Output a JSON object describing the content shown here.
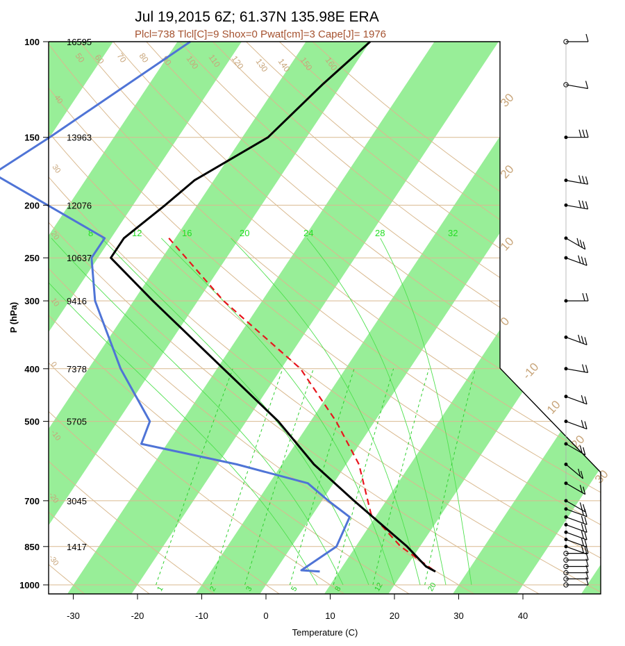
{
  "title": "Jul 19,2015 6Z; 61.37N 135.98E ERA",
  "subtitle": "Plcl=738 Tlcl[C]=9 Shox=0 Pwat[cm]=3 Cape[J]= 1976",
  "xlabel": "Temperature (C)",
  "ylabel": "P (hPa)",
  "colors": {
    "temperature": "#000000",
    "dewpoint": "#4f74d6",
    "parcel": "#e8141c",
    "isotherm_band": "#98ee98",
    "dry_adiabat": "#d9b98f",
    "mixing_ratio": "#2fcf2f",
    "moist_adiabat": "#4fe04f",
    "subtitle": "#a5522f",
    "label_tan": "#c8a57a"
  },
  "chart_data": {
    "type": "line",
    "title": "Jul 19,2015 6Z; 61.37N 135.98E ERA",
    "subtitle": "Plcl=738 Tlcl[C]=9 Shox=0 Pwat[cm]=3 Cape[J]= 1976",
    "xlabel": "Temperature (C)",
    "ylabel": "P (hPa)",
    "y_scale": "log",
    "xlim": [
      -33,
      52
    ],
    "ylim": [
      1050,
      100
    ],
    "x_ticks": [
      "-30",
      "-20",
      "-10",
      "0",
      "10",
      "20",
      "30",
      "40"
    ],
    "y_ticks": [
      "100",
      "150",
      "200",
      "250",
      "300",
      "400",
      "500",
      "700",
      "850",
      "1000"
    ],
    "heights": [
      {
        "p": 100,
        "label": "16595"
      },
      {
        "p": 150,
        "label": "13963"
      },
      {
        "p": 200,
        "label": "12076"
      },
      {
        "p": 250,
        "label": "10637"
      },
      {
        "p": 300,
        "label": "9416"
      },
      {
        "p": 400,
        "label": "7378"
      },
      {
        "p": 500,
        "label": "5705"
      },
      {
        "p": 700,
        "label": "3045"
      },
      {
        "p": 850,
        "label": "1417"
      }
    ],
    "temperature": [
      {
        "p": 100,
        "t": -40
      },
      {
        "p": 120,
        "t": -43
      },
      {
        "p": 150,
        "t": -46
      },
      {
        "p": 180,
        "t": -53
      },
      {
        "p": 200,
        "t": -55
      },
      {
        "p": 230,
        "t": -58
      },
      {
        "p": 250,
        "t": -58
      },
      {
        "p": 300,
        "t": -47
      },
      {
        "p": 400,
        "t": -29
      },
      {
        "p": 500,
        "t": -15
      },
      {
        "p": 600,
        "t": -5
      },
      {
        "p": 700,
        "t": 5
      },
      {
        "p": 850,
        "t": 18
      },
      {
        "p": 925,
        "t": 23
      },
      {
        "p": 945,
        "t": 25
      }
    ],
    "dewpoint": [
      {
        "p": 100,
        "t": -68
      },
      {
        "p": 150,
        "t": -80
      },
      {
        "p": 175,
        "t": -85
      },
      {
        "p": 230,
        "t": -61
      },
      {
        "p": 250,
        "t": -61
      },
      {
        "p": 300,
        "t": -56
      },
      {
        "p": 400,
        "t": -45
      },
      {
        "p": 500,
        "t": -35
      },
      {
        "p": 550,
        "t": -34
      },
      {
        "p": 600,
        "t": -17
      },
      {
        "p": 650,
        "t": -4
      },
      {
        "p": 700,
        "t": 1
      },
      {
        "p": 750,
        "t": 6
      },
      {
        "p": 850,
        "t": 7
      },
      {
        "p": 940,
        "t": 4
      },
      {
        "p": 945,
        "t": 7
      }
    ],
    "parcel": [
      {
        "p": 230,
        "t": -51
      },
      {
        "p": 300,
        "t": -36
      },
      {
        "p": 400,
        "t": -17
      },
      {
        "p": 500,
        "t": -6
      },
      {
        "p": 600,
        "t": 2
      },
      {
        "p": 740,
        "t": 9
      },
      {
        "p": 850,
        "t": 17
      },
      {
        "p": 945,
        "t": 25
      }
    ],
    "isotherm_bands": [
      [
        -110,
        -100
      ],
      [
        -90,
        -80
      ],
      [
        -70,
        -60
      ],
      [
        -50,
        -40
      ],
      [
        -30,
        -20
      ],
      [
        -10,
        0
      ],
      [
        10,
        20
      ],
      [
        30,
        40
      ],
      [
        50,
        60
      ]
    ],
    "dry_adiabats_C": [
      -30,
      -20,
      -10,
      0,
      10,
      20,
      30,
      40,
      50,
      60,
      70,
      80,
      90,
      100,
      110,
      120,
      130,
      140,
      150,
      160
    ],
    "dry_adiabat_labels": [
      "50",
      "60",
      "70",
      "80",
      "90",
      "100",
      "110",
      "120",
      "130",
      "140",
      "150",
      "160"
    ],
    "isotherm_labels": [
      "40",
      "30",
      "20",
      "10",
      "0",
      "-10",
      "-20",
      "-30",
      "30",
      "20",
      "10",
      "0",
      "-10",
      "10",
      "20",
      "30"
    ],
    "moist_adiabat_labels": [
      "8",
      "12",
      "16",
      "20",
      "24",
      "28",
      "32"
    ],
    "moist_adiabats_thetaw": [
      8,
      12,
      16,
      20,
      24,
      28,
      32
    ],
    "mixing_ratio_labels": [
      "1",
      "2",
      "3",
      "5",
      "8",
      "12",
      "20"
    ],
    "mixing_ratios": [
      1,
      2,
      3,
      5,
      8,
      12,
      20
    ],
    "wind_levels": [
      {
        "p": 100,
        "dir": 270,
        "spd": 10
      },
      {
        "p": 120,
        "dir": 280,
        "spd": 10
      },
      {
        "p": 150,
        "dir": 270,
        "spd": 25
      },
      {
        "p": 180,
        "dir": 280,
        "spd": 30
      },
      {
        "p": 200,
        "dir": 280,
        "spd": 25
      },
      {
        "p": 230,
        "dir": 300,
        "spd": 30
      },
      {
        "p": 250,
        "dir": 290,
        "spd": 25
      },
      {
        "p": 300,
        "dir": 270,
        "spd": 20
      },
      {
        "p": 350,
        "dir": 290,
        "spd": 25
      },
      {
        "p": 400,
        "dir": 280,
        "spd": 20
      },
      {
        "p": 450,
        "dir": 290,
        "spd": 20
      },
      {
        "p": 500,
        "dir": 290,
        "spd": 20
      },
      {
        "p": 550,
        "dir": 300,
        "spd": 20
      },
      {
        "p": 600,
        "dir": 310,
        "spd": 20
      },
      {
        "p": 650,
        "dir": 300,
        "spd": 20
      },
      {
        "p": 700,
        "dir": 300,
        "spd": 20
      },
      {
        "p": 725,
        "dir": 290,
        "spd": 20
      },
      {
        "p": 750,
        "dir": 290,
        "spd": 20
      },
      {
        "p": 775,
        "dir": 290,
        "spd": 20
      },
      {
        "p": 800,
        "dir": 290,
        "spd": 20
      },
      {
        "p": 825,
        "dir": 290,
        "spd": 20
      },
      {
        "p": 850,
        "dir": 290,
        "spd": 20
      },
      {
        "p": 875,
        "dir": 270,
        "spd": 10
      },
      {
        "p": 900,
        "dir": 270,
        "spd": 10
      },
      {
        "p": 925,
        "dir": 270,
        "spd": 10
      },
      {
        "p": 950,
        "dir": 270,
        "spd": 10
      },
      {
        "p": 975,
        "dir": 270,
        "spd": 10
      },
      {
        "p": 1000,
        "dir": 270,
        "spd": 10
      }
    ]
  }
}
